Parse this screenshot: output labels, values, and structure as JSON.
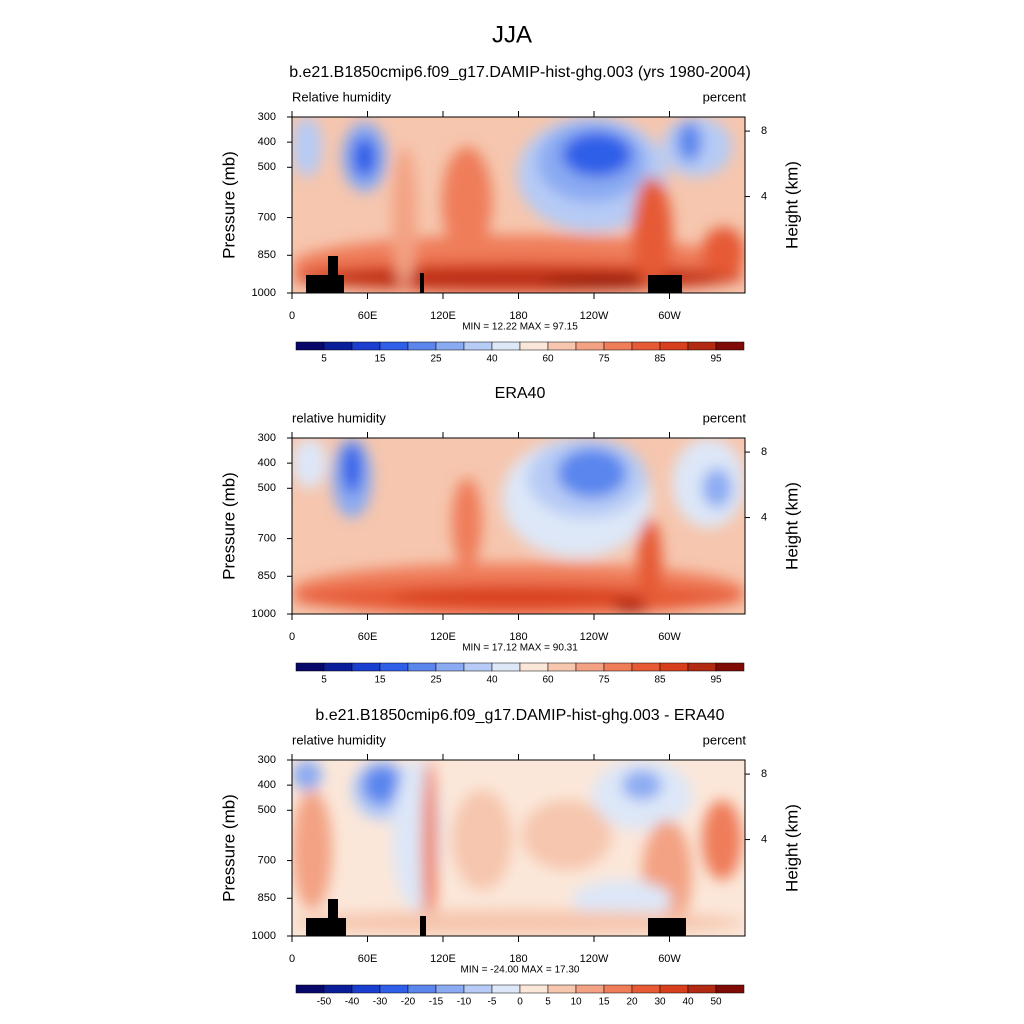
{
  "title": "JJA",
  "chart_data": [
    {
      "type": "contour",
      "title": "b.e21.B1850cmip6.f09_g17.DAMIP-hist-ghg.003 (yrs 1980-2004)",
      "left_label": "Relative humidity",
      "right_label": "percent",
      "y_label": "Pressure (mb)",
      "y2_label": "Height (km)",
      "ylim": [
        1000,
        300
      ],
      "yticks": [
        300,
        400,
        500,
        700,
        850,
        1000
      ],
      "y2ticks": [
        4,
        8
      ],
      "xlim": [
        0,
        360
      ],
      "xticks": [
        0,
        {
          "value": 60,
          "label": "60E"
        },
        {
          "value": 120,
          "label": "120E"
        },
        180,
        {
          "value": 240,
          "label": "120W"
        },
        {
          "value": 300,
          "label": "60W"
        }
      ],
      "stats": "MIN =  12.22  MAX =  97.15",
      "colorbar_labels": [
        5,
        15,
        25,
        40,
        60,
        75,
        85,
        95
      ],
      "colors": [
        "#08086b",
        "#0a1e9a",
        "#1a3fd0",
        "#2f5fe8",
        "#5a86ee",
        "#8aaaf2",
        "#b6cbf5",
        "#dde7f8",
        "#fbe7d9",
        "#f6c6ae",
        "#f3a283",
        "#ef7d5a",
        "#e65a36",
        "#d8401d",
        "#b22a12",
        "#7f0a06"
      ]
    },
    {
      "type": "contour",
      "title": "ERA40",
      "left_label": "relative humidity",
      "right_label": "percent",
      "y_label": "Pressure (mb)",
      "y2_label": "Height (km)",
      "ylim": [
        1000,
        300
      ],
      "yticks": [
        300,
        400,
        500,
        700,
        850,
        1000
      ],
      "y2ticks": [
        4,
        8
      ],
      "xlim": [
        0,
        360
      ],
      "xticks": [
        0,
        {
          "value": 60,
          "label": "60E"
        },
        {
          "value": 120,
          "label": "120E"
        },
        180,
        {
          "value": 240,
          "label": "120W"
        },
        {
          "value": 300,
          "label": "60W"
        }
      ],
      "stats": "MIN =  17.12  MAX =  90.31",
      "colorbar_labels": [
        5,
        15,
        25,
        40,
        60,
        75,
        85,
        95
      ],
      "colors": [
        "#08086b",
        "#0a1e9a",
        "#1a3fd0",
        "#2f5fe8",
        "#5a86ee",
        "#8aaaf2",
        "#b6cbf5",
        "#dde7f8",
        "#fbe7d9",
        "#f6c6ae",
        "#f3a283",
        "#ef7d5a",
        "#e65a36",
        "#d8401d",
        "#b22a12",
        "#7f0a06"
      ]
    },
    {
      "type": "contour",
      "title": "b.e21.B1850cmip6.f09_g17.DAMIP-hist-ghg.003 - ERA40",
      "left_label": "relative humidity",
      "right_label": "percent",
      "y_label": "Pressure (mb)",
      "y2_label": "Height (km)",
      "ylim": [
        1000,
        300
      ],
      "yticks": [
        300,
        400,
        500,
        700,
        850,
        1000
      ],
      "y2ticks": [
        4,
        8
      ],
      "xlim": [
        0,
        360
      ],
      "xticks": [
        0,
        {
          "value": 60,
          "label": "60E"
        },
        {
          "value": 120,
          "label": "120E"
        },
        180,
        {
          "value": 240,
          "label": "120W"
        },
        {
          "value": 300,
          "label": "60W"
        }
      ],
      "stats": "MIN = -24.00  MAX =  17.30",
      "colorbar_labels": [
        -50,
        -40,
        -30,
        -20,
        -15,
        -10,
        -5,
        0,
        5,
        10,
        15,
        20,
        30,
        40,
        50
      ],
      "colors": [
        "#08086b",
        "#0a1e9a",
        "#1a3fd0",
        "#2f5fe8",
        "#5a86ee",
        "#8aaaf2",
        "#b6cbf5",
        "#dde7f8",
        "#fbe7d9",
        "#f6c6ae",
        "#f3a283",
        "#ef7d5a",
        "#e65a36",
        "#d8401d",
        "#b22a12",
        "#7f0a06"
      ]
    }
  ]
}
